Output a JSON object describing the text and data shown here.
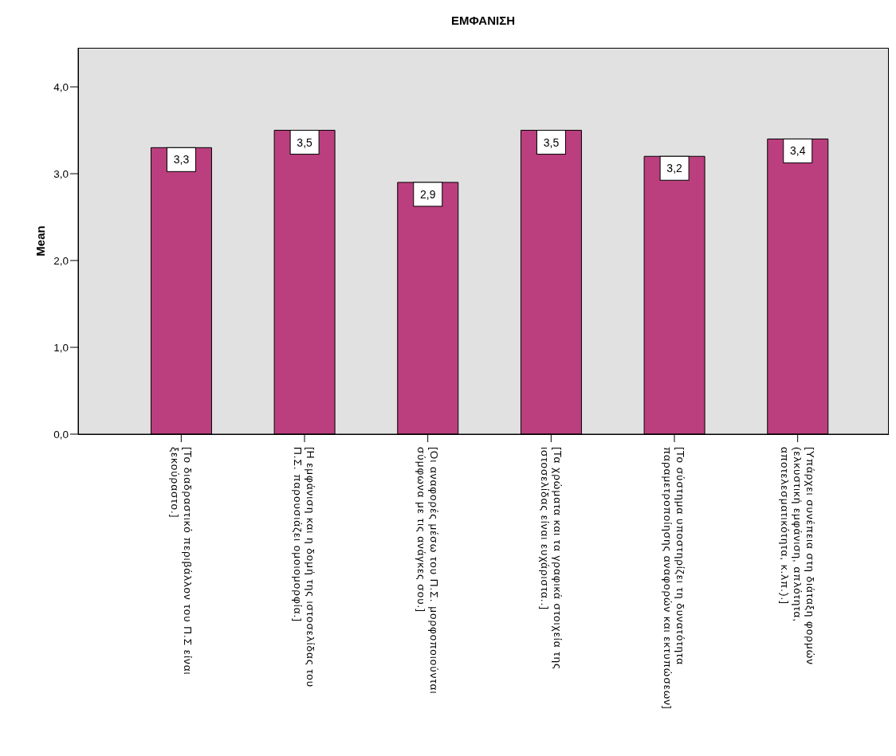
{
  "chart_data": {
    "type": "bar",
    "title": "ΕΜΦΑΝΙΣΗ",
    "ylabel": "Mean",
    "categories": [
      "[Το διαδραστικό περιβάλλον του Π.Σ είναι ξεκούραστο.]",
      "[Η εμφάνιση και η δομή της ιστοσελίδας του Π.Σ. παρουσιάζει ομοιομορφία.]",
      "[Οι αναφορές μέσω του Π.Σ. μορφοποιούνται σύμφωνα με τις ανάγκες σου.]",
      "[Τα χρώματα και τα γραφικά στοιχεία της ιστοσελίδας είναι ευχάριστα..]",
      "[Το σύστημα υποστηρίζει τη δυνατότητα παραμετροποίησης αναφορών και εκτυπώσεων]",
      "[Υπάρχει συνέπεια στη διάταξη φορμών (ελκυστική εμφάνιση, απλότητα, αποτελεσματικότητα, κ.λπ.).]"
    ],
    "values": [
      3.3,
      3.5,
      2.9,
      3.5,
      3.2,
      3.4
    ],
    "value_labels": [
      "3,3",
      "3,5",
      "2,9",
      "3,5",
      "3,2",
      "3,4"
    ],
    "color": "#bb3f7e",
    "ylim": [
      0,
      4.45
    ],
    "yticks": [
      {
        "value": 0,
        "label": "0,0"
      },
      {
        "value": 1,
        "label": "1,0"
      },
      {
        "value": 2,
        "label": "2,0"
      },
      {
        "value": 3,
        "label": "3,0"
      },
      {
        "value": 4,
        "label": "4,0"
      }
    ]
  }
}
